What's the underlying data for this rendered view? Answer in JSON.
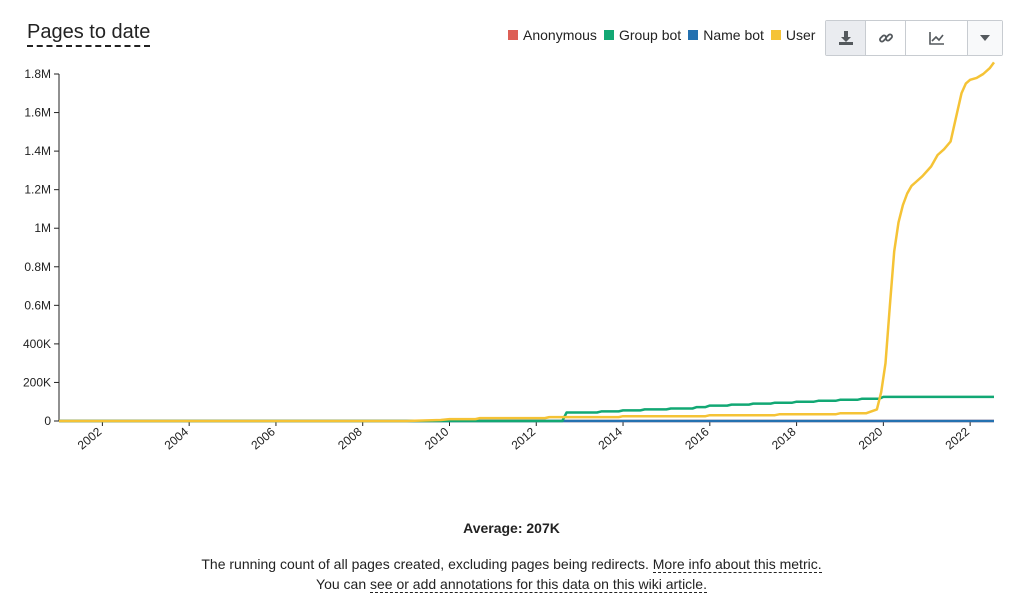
{
  "title": "Pages to date",
  "legend": [
    {
      "label": "Anonymous",
      "color": "#dd5f56"
    },
    {
      "label": "Group bot",
      "color": "#12a874"
    },
    {
      "label": "Name bot",
      "color": "#2471b0"
    },
    {
      "label": "User",
      "color": "#f5c336"
    }
  ],
  "toolbar": {
    "download_icon": "download-icon",
    "link_icon": "link-icon",
    "chart_icon": "line-chart-icon",
    "caret_icon": "chevron-down-icon"
  },
  "average_text": "Average: 207K",
  "description": {
    "text": "The running count of all pages created, excluding pages being redirects. ",
    "link": "More info about this metric.",
    "prefix2": "You can ",
    "link2": "see or add annotations for this data on this wiki article."
  },
  "chart_data": {
    "type": "line",
    "title": "Pages to date",
    "xlabel": "",
    "ylabel": "",
    "xlim": [
      2001.0,
      2022.55
    ],
    "ylim": [
      0,
      1800000
    ],
    "x_ticks": [
      2002,
      2004,
      2006,
      2008,
      2010,
      2012,
      2014,
      2016,
      2018,
      2020,
      2022
    ],
    "x_tick_labels": [
      "2002",
      "2004",
      "2006",
      "2008",
      "2010",
      "2012",
      "2014",
      "2016",
      "2018",
      "2020",
      "2022"
    ],
    "y_ticks": [
      0,
      200000,
      400000,
      600000,
      800000,
      1000000,
      1200000,
      1400000,
      1600000,
      1800000
    ],
    "y_tick_labels": [
      "0",
      "200K",
      "400K",
      "0.6M",
      "0.8M",
      "1M",
      "1.2M",
      "1.4M",
      "1.6M",
      "1.8M"
    ],
    "grid": false,
    "legend_position": "top-right",
    "series": [
      {
        "name": "Anonymous",
        "color": "#dd5f56",
        "x": [
          2001.0,
          2022.55
        ],
        "y": [
          0,
          0
        ]
      },
      {
        "name": "Name bot",
        "color": "#2471b0",
        "x": [
          2001.0,
          2022.55
        ],
        "y": [
          0,
          0
        ]
      },
      {
        "name": "Group bot",
        "color": "#12a874",
        "x": [
          2001.0,
          2012.6,
          2012.7,
          2013.4,
          2013.5,
          2013.9,
          2014.0,
          2014.4,
          2014.5,
          2015.0,
          2015.1,
          2015.6,
          2015.7,
          2015.9,
          2016.0,
          2016.4,
          2016.5,
          2016.9,
          2017.0,
          2017.4,
          2017.5,
          2017.9,
          2018.0,
          2018.4,
          2018.5,
          2018.9,
          2019.0,
          2019.4,
          2019.5,
          2019.9,
          2020.0,
          2022.55
        ],
        "y": [
          0,
          0,
          44000,
          44000,
          50000,
          50000,
          55000,
          55000,
          60000,
          60000,
          65000,
          65000,
          72000,
          72000,
          80000,
          80000,
          85000,
          85000,
          90000,
          90000,
          95000,
          95000,
          100000,
          100000,
          105000,
          105000,
          110000,
          110000,
          115000,
          115000,
          125000,
          125000
        ]
      },
      {
        "name": "User",
        "color": "#f5c336",
        "x": [
          2001.0,
          2009.0,
          2009.8,
          2010.0,
          2010.6,
          2010.7,
          2012.2,
          2012.3,
          2013.9,
          2014.0,
          2015.9,
          2016.0,
          2017.5,
          2017.6,
          2018.9,
          2019.0,
          2019.6,
          2019.85,
          2019.95,
          2020.05,
          2020.15,
          2020.25,
          2020.35,
          2020.45,
          2020.55,
          2020.65,
          2020.75,
          2020.9,
          2021.1,
          2021.25,
          2021.4,
          2021.55,
          2021.7,
          2021.8,
          2021.9,
          2022.0,
          2022.15,
          2022.3,
          2022.45,
          2022.55
        ],
        "y": [
          0,
          0,
          5000,
          10000,
          10000,
          15000,
          15000,
          20000,
          20000,
          25000,
          25000,
          30000,
          30000,
          35000,
          35000,
          40000,
          40000,
          60000,
          150000,
          300000,
          600000,
          880000,
          1030000,
          1120000,
          1180000,
          1220000,
          1240000,
          1270000,
          1320000,
          1380000,
          1410000,
          1450000,
          1600000,
          1700000,
          1750000,
          1770000,
          1780000,
          1800000,
          1830000,
          1860000
        ]
      }
    ]
  }
}
